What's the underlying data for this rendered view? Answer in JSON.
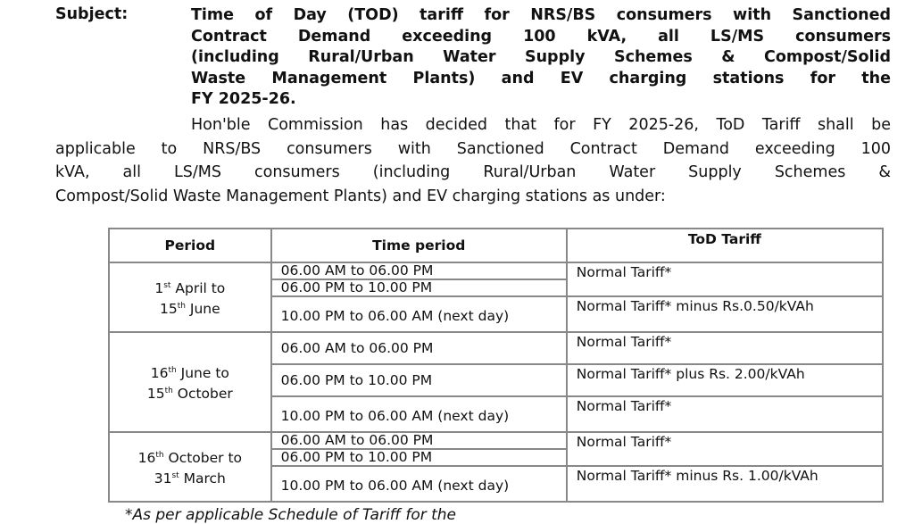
{
  "subject": {
    "label": "Subject:",
    "lines": [
      "Time of Day (TOD) tariff for NRS/BS consumers with Sanctioned",
      "Contract Demand exceeding 100 kVA, all LS/MS consumers",
      "(including Rural/Urban Water Supply Schemes & Compost/Solid",
      "Waste Management Plants) and EV charging stations for the",
      "FY 2025-26."
    ]
  },
  "paragraph": {
    "lines": [
      "Hon'ble Commission has decided that for FY 2025-26, ToD Tariff shall be",
      "applicable to NRS/BS consumers with Sanctioned Contract Demand exceeding 100",
      "kVA, all LS/MS consumers (including Rural/Urban Water Supply Schemes &",
      "Compost/Solid Waste Management Plants) and EV charging stations as under:"
    ]
  },
  "table": {
    "headers": [
      "Period",
      "Time period",
      "ToD Tariff"
    ],
    "groups": [
      {
        "period": {
          "d1": "1",
          "s1": "st",
          "t1": " April to",
          "d2": "15",
          "s2": "th",
          "t2": " June"
        },
        "times": [
          "06.00 AM to 06.00 PM",
          "06.00 PM to 10.00 PM",
          "10.00 PM to 06.00 AM (next day)"
        ],
        "tariffs": [
          "Normal Tariff*",
          "Normal Tariff* minus Rs.0.50/kVAh"
        ]
      },
      {
        "period": {
          "d1": "16",
          "s1": "th",
          "t1": " June to",
          "d2": "15",
          "s2": "th",
          "t2": " October"
        },
        "times": [
          "06.00 AM to 06.00 PM",
          "06.00 PM to 10.00 PM",
          "10.00 PM to 06.00 AM (next day)"
        ],
        "tariffs": [
          "Normal Tariff*",
          "Normal Tariff* plus Rs. 2.00/kVAh",
          "Normal Tariff*"
        ]
      },
      {
        "period": {
          "d1": "16",
          "s1": "th",
          "t1": " October to",
          "d2": "31",
          "s2": "st",
          "t2": " March"
        },
        "times": [
          "06.00 AM to 06.00 PM",
          "06.00 PM to 10.00 PM",
          "10.00 PM to 06.00 AM (next day)"
        ],
        "tariffs": [
          "Normal Tariff*",
          "Normal Tariff* minus Rs. 1.00/kVAh"
        ]
      }
    ]
  },
  "footnote": "*As per applicable Schedule of Tariff for the"
}
